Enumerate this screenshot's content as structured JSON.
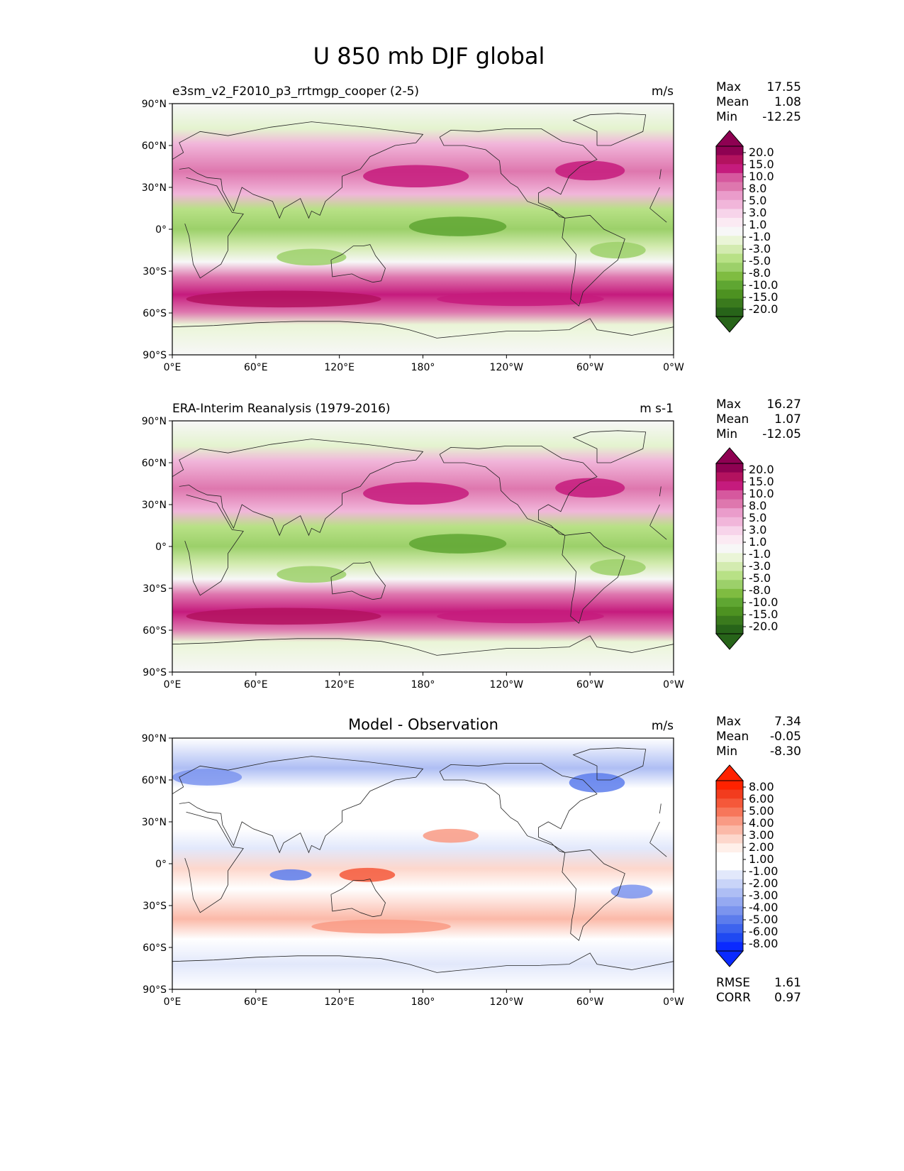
{
  "figure": {
    "title": "U 850 mb DJF global"
  },
  "axes": {
    "lat_ticks": [
      "90°N",
      "60°N",
      "30°N",
      "0°",
      "30°S",
      "60°S",
      "90°S"
    ],
    "lon_ticks": [
      "0°E",
      "60°E",
      "120°E",
      "180°",
      "120°W",
      "60°W",
      "0°W"
    ]
  },
  "stat_labels": {
    "max": "Max",
    "mean": "Mean",
    "min": "Min",
    "rmse": "RMSE",
    "corr": "CORR"
  },
  "panels": [
    {
      "title": "e3sm_v2_F2010_p3_rrtmgp_cooper (2-5)",
      "units": "m/s",
      "stats": {
        "max": "17.55",
        "mean": "1.08",
        "min": "-12.25"
      },
      "colorbar_labels": [
        "20.0",
        "15.0",
        "10.0",
        "8.0",
        "5.0",
        "3.0",
        "1.0",
        "-1.0",
        "-3.0",
        "-5.0",
        "-8.0",
        "-10.0",
        "-15.0",
        "-20.0"
      ],
      "colors": {
        "over": "#8e0152",
        "under": "#276419",
        "bins": [
          "#8e0152",
          "#b3125f",
          "#c51b7d",
          "#d6589e",
          "#de77ae",
          "#ea9ccb",
          "#f1b6da",
          "#f7d4ea",
          "#fbeaf3",
          "#f7f7f7",
          "#eaf5d7",
          "#d3ebb0",
          "#b8e186",
          "#9cd06a",
          "#7fbc41",
          "#5fa632",
          "#4d9221",
          "#3a7a1d",
          "#276419"
        ]
      }
    },
    {
      "title": "ERA-Interim Reanalysis (1979-2016)",
      "units": "m s-1",
      "stats": {
        "max": "16.27",
        "mean": "1.07",
        "min": "-12.05"
      },
      "colorbar_labels": [
        "20.0",
        "15.0",
        "10.0",
        "8.0",
        "5.0",
        "3.0",
        "1.0",
        "-1.0",
        "-3.0",
        "-5.0",
        "-8.0",
        "-10.0",
        "-15.0",
        "-20.0"
      ],
      "colors": {
        "over": "#8e0152",
        "under": "#276419",
        "bins": [
          "#8e0152",
          "#b3125f",
          "#c51b7d",
          "#d6589e",
          "#de77ae",
          "#ea9ccb",
          "#f1b6da",
          "#f7d4ea",
          "#fbeaf3",
          "#f7f7f7",
          "#eaf5d7",
          "#d3ebb0",
          "#b8e186",
          "#9cd06a",
          "#7fbc41",
          "#5fa632",
          "#4d9221",
          "#3a7a1d",
          "#276419"
        ]
      }
    },
    {
      "title": "Model - Observation",
      "units": "m/s",
      "stats": {
        "max": "7.34",
        "mean": "-0.05",
        "min": "-8.30"
      },
      "metrics": {
        "rmse": "1.61",
        "corr": "0.97"
      },
      "colorbar_labels": [
        "8.00",
        "6.00",
        "5.00",
        "4.00",
        "3.00",
        "2.00",
        "1.00",
        "-1.00",
        "-2.00",
        "-3.00",
        "-4.00",
        "-5.00",
        "-6.00",
        "-8.00"
      ],
      "colors": {
        "over": "#ff2200",
        "under": "#0a2aff",
        "bins": [
          "#ff2200",
          "#f23c1e",
          "#f5583a",
          "#f7765a",
          "#f99a84",
          "#fbb9a8",
          "#fdd7cc",
          "#fff0ea",
          "#ffffff",
          "#ffffff",
          "#e2e8fb",
          "#c9d4f8",
          "#aebef4",
          "#95a9f1",
          "#7b94ee",
          "#5c7cec",
          "#3d63ee",
          "#1f49f2",
          "#0a2aff"
        ]
      }
    }
  ]
}
